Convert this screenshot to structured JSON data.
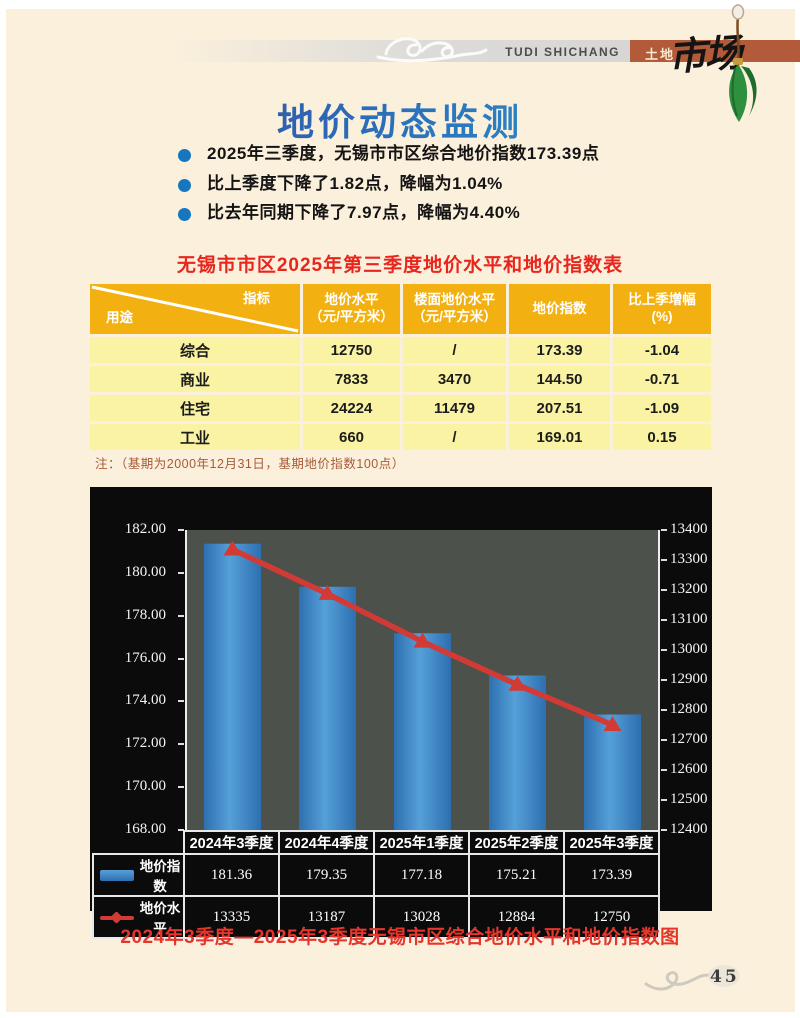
{
  "header": {
    "journal_en": "TUDI SHICHANG",
    "journal_cn_small": "土地",
    "journal_cn_script": "市场"
  },
  "page_title": "地价动态监测",
  "bullets": [
    "2025年三季度，无锡市市区综合地价指数173.39点",
    "比上季度下降了1.82点，降幅为1.04%",
    "比去年同期下降了7.97点，降幅为4.40%"
  ],
  "price_table": {
    "title": "无锡市市区2025年第三季度地价水平和地价指数表",
    "corner": {
      "top_right": "指标",
      "bottom_left": "用途"
    },
    "headers": [
      {
        "l1": "地价水平",
        "l2": "（元/平方米）"
      },
      {
        "l1": "楼面地价水平",
        "l2": "（元/平方米）"
      },
      {
        "l1": "地价指数",
        "l2": ""
      },
      {
        "l1": "比上季增幅",
        "l2": "(%)"
      }
    ],
    "rows": [
      {
        "use": "综合",
        "price": "12750",
        "floor": "/",
        "index": "173.39",
        "change": "-1.04"
      },
      {
        "use": "商业",
        "price": "7833",
        "floor": "3470",
        "index": "144.50",
        "change": "-0.71"
      },
      {
        "use": "住宅",
        "price": "24224",
        "floor": "11479",
        "index": "207.51",
        "change": "-1.09"
      },
      {
        "use": "工业",
        "price": "660",
        "floor": "/",
        "index": "169.01",
        "change": "0.15"
      }
    ],
    "note": "注：（基期为2000年12月31日，基期地价指数100点）"
  },
  "chart_data": {
    "type": "combo",
    "title": "2024年3季度—2025年3季度无锡市区综合地价水平和地价指数图",
    "categories": [
      "2024年3季度",
      "2024年4季度",
      "2025年1季度",
      "2025年2季度",
      "2025年3季度"
    ],
    "series": [
      {
        "name": "地价指数",
        "kind": "bar",
        "axis": "left",
        "color": "#3b82c4",
        "values": [
          181.36,
          179.35,
          177.18,
          175.21,
          173.39
        ]
      },
      {
        "name": "地价水平",
        "kind": "line",
        "axis": "right",
        "color": "#D23A35",
        "values": [
          13335,
          13187,
          13028,
          12884,
          12750
        ]
      }
    ],
    "left_axis": {
      "min": 168,
      "max": 182,
      "step": 2,
      "labels": [
        "182.00",
        "180.00",
        "178.00",
        "176.00",
        "174.00",
        "172.00",
        "170.00",
        "168.00"
      ]
    },
    "right_axis": {
      "min": 12400,
      "max": 13400,
      "step": 100,
      "labels": [
        "13400",
        "13300",
        "13200",
        "13100",
        "13000",
        "12900",
        "12800",
        "12700",
        "12600",
        "12500",
        "12400"
      ]
    },
    "legend_position": "bottom-table",
    "grid": "off",
    "plot_bg": "#4C514C",
    "chart_bg": "#0B0B0B"
  },
  "chart_caption": "2024年3季度—2025年3季度无锡市区综合地价水平和地价指数图",
  "footer": {
    "page_number": "45"
  }
}
